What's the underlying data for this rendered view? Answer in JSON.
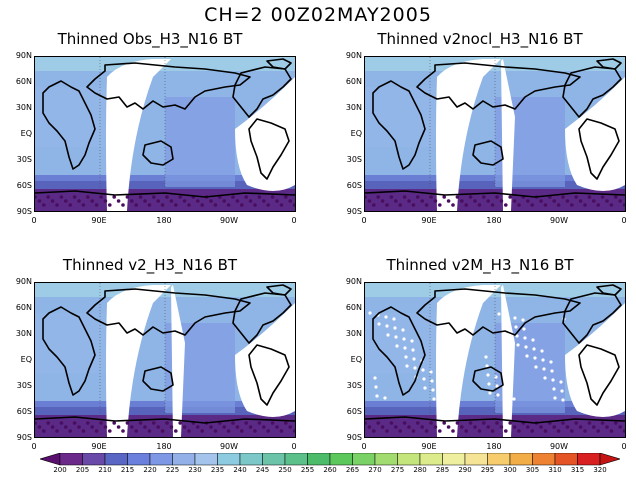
{
  "title": "CH=2   00Z02MAY2005",
  "panels": [
    {
      "title": "Thinned Obs_H3_N16 BT"
    },
    {
      "title": "Thinned v2nocl_H3_N16 BT"
    },
    {
      "title": "Thinned v2_H3_N16 BT"
    },
    {
      "title": "Thinned v2M_H3_N16 BT"
    }
  ],
  "lat_labels": [
    "90N",
    "60N",
    "30N",
    "EQ",
    "30S",
    "60S",
    "90S"
  ],
  "lon_labels": [
    "0",
    "90E",
    "180",
    "90W",
    "0"
  ],
  "colorbar": {
    "labels": [
      "200",
      "205",
      "210",
      "215",
      "220",
      "225",
      "230",
      "235",
      "240",
      "245",
      "250",
      "255",
      "260",
      "265",
      "270",
      "275",
      "280",
      "285",
      "290",
      "295",
      "300",
      "305",
      "310",
      "315",
      "320"
    ],
    "colors": [
      "#5a0f6e",
      "#6b2a8a",
      "#6a4aa8",
      "#5a66c4",
      "#6a80dc",
      "#7e98e6",
      "#94b0e8",
      "#a4c4ec",
      "#8ccbe0",
      "#7cc8c8",
      "#6cc4a8",
      "#5cc08a",
      "#4cbc6a",
      "#5cc85c",
      "#7ad266",
      "#a2dc70",
      "#c4e47c",
      "#dcec8c",
      "#eef0a0",
      "#f6e496",
      "#f6cc6c",
      "#f2ac48",
      "#ec8232",
      "#e45424",
      "#d82020",
      "#c41414"
    ]
  }
}
